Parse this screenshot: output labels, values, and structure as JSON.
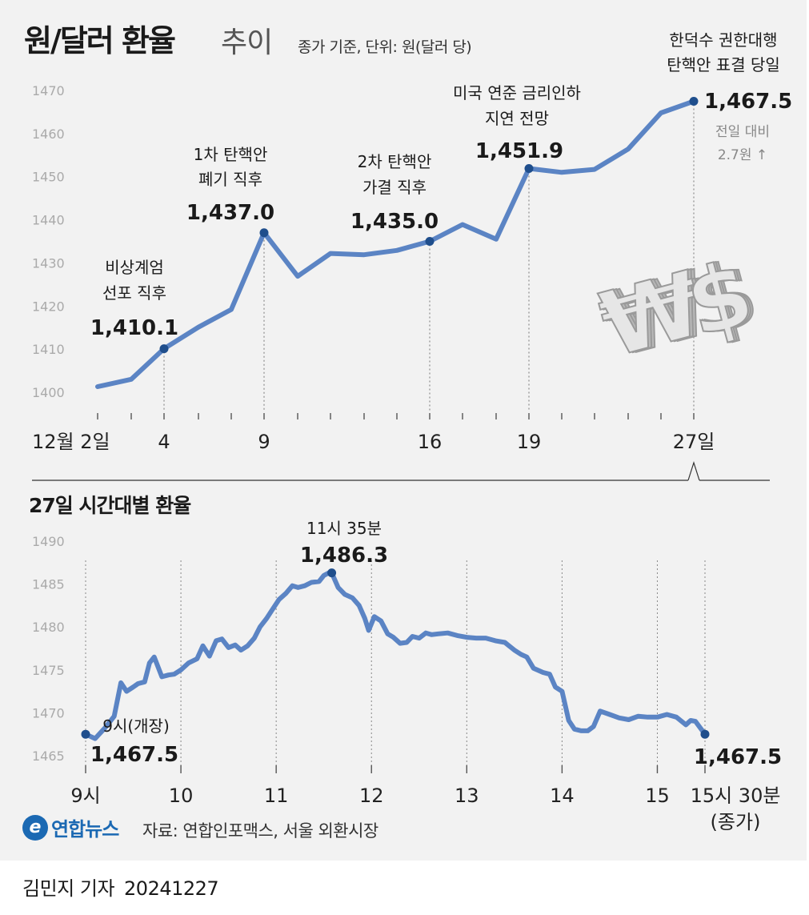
{
  "header": {
    "title": "원/달러 환율",
    "title_suffix": "추이",
    "unit_note": "종가 기준, 단위: 원(달러 당)"
  },
  "chart_data": [
    {
      "type": "line",
      "title": "원/달러 환율 추이",
      "ylim": [
        1400,
        1470
      ],
      "yticks": [
        1400,
        1410,
        1420,
        1430,
        1440,
        1450,
        1460,
        1470
      ],
      "x_tick_labels": [
        "12월 2일",
        "4",
        "9",
        "16",
        "19",
        "27일"
      ],
      "x": [
        "12/2",
        "12/3",
        "12/4",
        "12/5",
        "12/6",
        "12/9",
        "12/10",
        "12/11",
        "12/12",
        "12/13",
        "12/16",
        "12/17",
        "12/18",
        "12/19",
        "12/20",
        "12/23",
        "12/24",
        "12/26",
        "12/27"
      ],
      "values": [
        1401.3,
        1403.0,
        1410.1,
        1415.1,
        1419.2,
        1437.0,
        1426.9,
        1432.2,
        1431.9,
        1432.9,
        1435.0,
        1438.9,
        1435.5,
        1451.9,
        1451.0,
        1451.7,
        1456.4,
        1464.8,
        1467.5
      ],
      "color": "#5b84c4",
      "annotations": [
        {
          "point": "12/4",
          "label": [
            "비상계엄",
            "선포 직후"
          ],
          "value": "1,410.1"
        },
        {
          "point": "12/9",
          "label": [
            "1차 탄핵안",
            "폐기 직후"
          ],
          "value": "1,437.0"
        },
        {
          "point": "12/16",
          "label": [
            "2차 탄핵안",
            "가결 직후"
          ],
          "value": "1,435.0"
        },
        {
          "point": "12/19",
          "label": [
            "미국 연준 금리인하",
            "지연 전망"
          ],
          "value": "1,451.9"
        },
        {
          "point": "12/27",
          "label": [
            "한덕수 권한대행",
            "탄핵안 표결 당일"
          ],
          "value": "1,467.5",
          "note": [
            "전일 대비",
            "2.7원 ↑"
          ]
        }
      ]
    },
    {
      "type": "line",
      "title": "27일 시간대별 환율",
      "ylim": [
        1465,
        1490
      ],
      "yticks": [
        1465,
        1470,
        1475,
        1480,
        1485,
        1490
      ],
      "x_tick_labels": [
        "9시",
        "10",
        "11",
        "12",
        "13",
        "14",
        "15",
        "15시 30분",
        "(종가)"
      ],
      "x_hours": [
        9.0,
        9.1,
        9.2,
        9.3,
        9.37,
        9.43,
        9.5,
        9.55,
        9.62,
        9.67,
        9.72,
        9.8,
        9.87,
        9.93,
        10.0,
        10.08,
        10.17,
        10.23,
        10.3,
        10.37,
        10.43,
        10.5,
        10.57,
        10.63,
        10.7,
        10.77,
        10.83,
        10.9,
        10.97,
        11.03,
        11.1,
        11.17,
        11.23,
        11.3,
        11.37,
        11.45,
        11.5,
        11.55,
        11.583,
        11.65,
        11.72,
        11.8,
        11.87,
        11.93,
        11.97,
        12.03,
        12.1,
        12.17,
        12.23,
        12.3,
        12.37,
        12.43,
        12.5,
        12.57,
        12.63,
        12.7,
        12.8,
        12.9,
        13.0,
        13.1,
        13.2,
        13.3,
        13.4,
        13.5,
        13.57,
        13.63,
        13.7,
        13.8,
        13.87,
        13.93,
        14.0,
        14.07,
        14.13,
        14.2,
        14.27,
        14.33,
        14.4,
        14.5,
        14.6,
        14.7,
        14.8,
        14.9,
        15.0,
        15.1,
        15.2,
        15.3,
        15.35,
        15.4,
        15.5
      ],
      "values": [
        1467.5,
        1467.0,
        1468.2,
        1469.6,
        1473.5,
        1472.5,
        1473.0,
        1473.4,
        1473.6,
        1475.8,
        1476.5,
        1474.2,
        1474.4,
        1474.5,
        1475.0,
        1475.8,
        1476.3,
        1477.8,
        1476.6,
        1478.4,
        1478.6,
        1477.6,
        1477.9,
        1477.3,
        1477.8,
        1478.7,
        1480.0,
        1481.0,
        1482.2,
        1483.2,
        1483.9,
        1484.8,
        1484.6,
        1484.8,
        1485.2,
        1485.3,
        1486.0,
        1486.3,
        1486.3,
        1484.6,
        1483.8,
        1483.4,
        1482.5,
        1481.0,
        1479.6,
        1481.2,
        1480.7,
        1479.2,
        1478.8,
        1478.1,
        1478.2,
        1478.9,
        1478.7,
        1479.3,
        1479.1,
        1479.2,
        1479.3,
        1479.0,
        1478.8,
        1478.7,
        1478.7,
        1478.4,
        1478.2,
        1477.3,
        1476.8,
        1476.5,
        1475.2,
        1474.7,
        1474.5,
        1473.0,
        1472.5,
        1469.1,
        1468.1,
        1467.9,
        1467.9,
        1468.4,
        1470.2,
        1469.8,
        1469.4,
        1469.2,
        1469.6,
        1469.5,
        1469.5,
        1469.8,
        1469.5,
        1468.6,
        1469.1,
        1469.0,
        1467.5
      ],
      "color": "#5b84c4",
      "annotations": [
        {
          "point": 9.0,
          "label": [
            "9시(개장)"
          ],
          "value": "1,467.5"
        },
        {
          "point": 11.583,
          "label": [
            "11시 35분"
          ],
          "value": "1,486.3"
        },
        {
          "point": 15.5,
          "label": [],
          "value": "1,467.5"
        }
      ]
    }
  ],
  "sub_title": "27일 시간대별 환율",
  "footer": {
    "logo_mark": "e",
    "logo_text": "연합뉴스",
    "source": "자료: 연합인포맥스, 서울 외환시장",
    "byline": "김민지 기자",
    "date": "20241227"
  }
}
